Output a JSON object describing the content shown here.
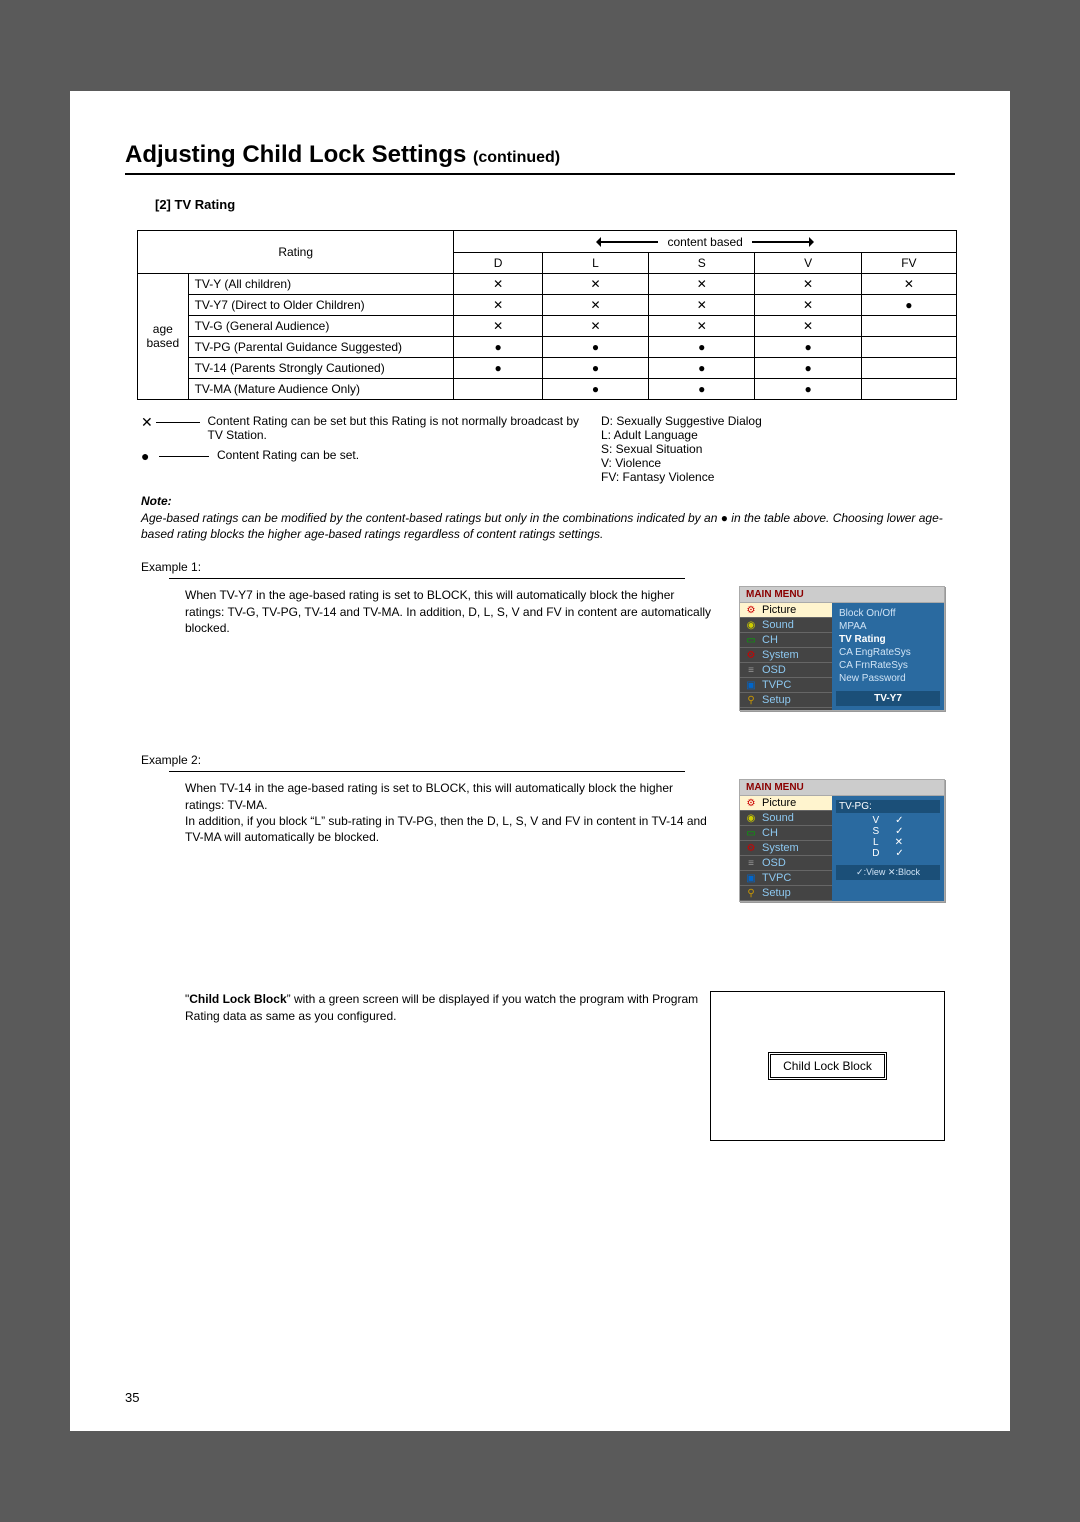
{
  "heading": {
    "title": "Adjusting Child Lock Settings",
    "continued": "(continued)"
  },
  "subheading": "[2] TV Rating",
  "rating_table": {
    "content_based_label": "content based",
    "rating_label": "Rating",
    "age_based_label_line1": "age",
    "age_based_label_line2": "based",
    "columns": [
      "D",
      "L",
      "S",
      "V",
      "FV"
    ],
    "rows": [
      {
        "label": "TV-Y (All children)",
        "cells": [
          "x",
          "x",
          "x",
          "x",
          "x"
        ]
      },
      {
        "label": "TV-Y7 (Direct to Older Children)",
        "cells": [
          "x",
          "x",
          "x",
          "x",
          "dot"
        ]
      },
      {
        "label": "TV-G (General Audience)",
        "cells": [
          "x",
          "x",
          "x",
          "x",
          ""
        ]
      },
      {
        "label": "TV-PG (Parental Guidance Suggested)",
        "cells": [
          "dot",
          "dot",
          "dot",
          "dot",
          ""
        ]
      },
      {
        "label": "TV-14 (Parents Strongly Cautioned)",
        "cells": [
          "dot",
          "dot",
          "dot",
          "dot",
          ""
        ]
      },
      {
        "label": "TV-MA (Mature Audience Only)",
        "cells": [
          "",
          "dot",
          "dot",
          "dot",
          ""
        ]
      }
    ]
  },
  "legend_x_text": "Content Rating can be set but this Rating is not normally broadcast by TV Station.",
  "legend_dot_text": "Content Rating can be set.",
  "content_defs": [
    "D: Sexually Suggestive Dialog",
    "L: Adult Language",
    "S: Sexual Situation",
    "V: Violence",
    "FV: Fantasy Violence"
  ],
  "note_label": "Note:",
  "note_body": "Age-based ratings can be modified by the content-based ratings but only in the combinations indicated by an ● in the table above. Choosing lower age-based rating blocks the higher age-based ratings regardless of content ratings settings.",
  "example1": {
    "label": "Example 1:",
    "body": "When TV-Y7 in the age-based rating is set to BLOCK, this will automatically block the higher ratings: TV-G, TV-PG, TV-14 and TV-MA. In addition, D, L, S, V and FV in content are automatically blocked."
  },
  "example2": {
    "label": "Example 2:",
    "body": "When TV-14 in the age-based rating is set to BLOCK, this will automatically block the higher ratings: TV-MA.\nIn addition, if you block “L” sub-rating in TV-PG, then the D, L, S, V and FV in content in TV-14 and TV-MA will automatically be blocked."
  },
  "menu": {
    "title": "MAIN MENU",
    "side_items": [
      "Picture",
      "Sound",
      "CH",
      "System",
      "OSD",
      "TVPC",
      "Setup"
    ],
    "pane1_opts": [
      "Block On/Off",
      "MPAA",
      "TV Rating",
      "CA EngRateSys",
      "CA FrnRateSys",
      "New Password"
    ],
    "pane1_tag": "TV-Y7",
    "pane2_head": "TV-PG:",
    "pane2_rows": [
      {
        "k": "V",
        "v": "✓"
      },
      {
        "k": "S",
        "v": "✓"
      },
      {
        "k": "L",
        "v": "✕"
      },
      {
        "k": "D",
        "v": "✓"
      }
    ],
    "pane2_foot": "✓:View  ✕:Block"
  },
  "child_lock": {
    "text": "“Child Lock Block” with a green screen will be displayed if you watch the program with Program Rating data as same as you configured.",
    "box_label": "Child Lock Block"
  },
  "page_number": "35",
  "symbols": {
    "x": "✕",
    "dot": "●"
  },
  "bold_words": {
    "clb": "Child Lock Block"
  }
}
